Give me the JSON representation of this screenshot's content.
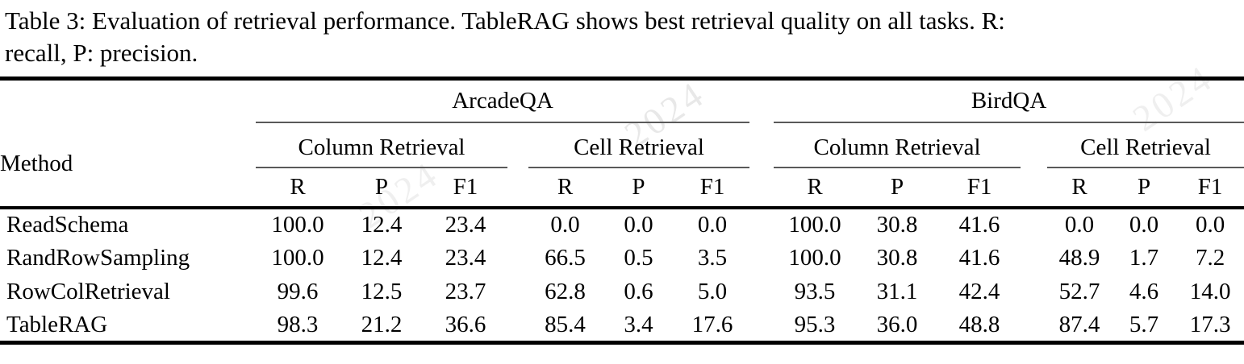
{
  "caption": {
    "line1": "Table 3: Evaluation of retrieval performance. TableRAG shows best retrieval quality on all tasks. R:",
    "line2": "recall, P: precision."
  },
  "watermark": {
    "fragments": [
      "2024",
      "2024",
      "2024"
    ]
  },
  "table": {
    "method_header": "Method",
    "datasets": [
      "ArcadeQA",
      "BirdQA"
    ],
    "subgroups": [
      "Column Retrieval",
      "Cell Retrieval",
      "Column Retrieval",
      "Cell Retrieval"
    ],
    "metrics": [
      "R",
      "P",
      "F1"
    ],
    "rows": [
      {
        "method": "ReadSchema",
        "method_bold": false,
        "values": [
          "100.0",
          "12.4",
          "23.4",
          "0.0",
          "0.0",
          "0.0",
          "100.0",
          "30.8",
          "41.6",
          "0.0",
          "0.0",
          "0.0"
        ],
        "bold": [
          true,
          false,
          false,
          false,
          false,
          false,
          true,
          false,
          false,
          false,
          false,
          false
        ]
      },
      {
        "method": "RandRowSampling",
        "method_bold": false,
        "values": [
          "100.0",
          "12.4",
          "23.4",
          "66.5",
          "0.5",
          "3.5",
          "100.0",
          "30.8",
          "41.6",
          "48.9",
          "1.7",
          "7.2"
        ],
        "bold": [
          true,
          false,
          false,
          false,
          false,
          false,
          true,
          false,
          false,
          false,
          false,
          false
        ]
      },
      {
        "method": "RowColRetrieval",
        "method_bold": false,
        "values": [
          "99.6",
          "12.5",
          "23.7",
          "62.8",
          "0.6",
          "5.0",
          "93.5",
          "31.1",
          "42.4",
          "52.7",
          "4.6",
          "14.0"
        ],
        "bold": [
          false,
          false,
          false,
          false,
          false,
          false,
          false,
          false,
          false,
          false,
          false,
          false
        ]
      },
      {
        "method": "TableRAG",
        "method_bold": true,
        "values": [
          "98.3",
          "21.2",
          "36.6",
          "85.4",
          "3.4",
          "17.6",
          "95.3",
          "36.0",
          "48.8",
          "87.4",
          "5.7",
          "17.3"
        ],
        "bold": [
          false,
          true,
          true,
          true,
          true,
          true,
          false,
          true,
          true,
          true,
          true,
          true
        ]
      }
    ]
  }
}
